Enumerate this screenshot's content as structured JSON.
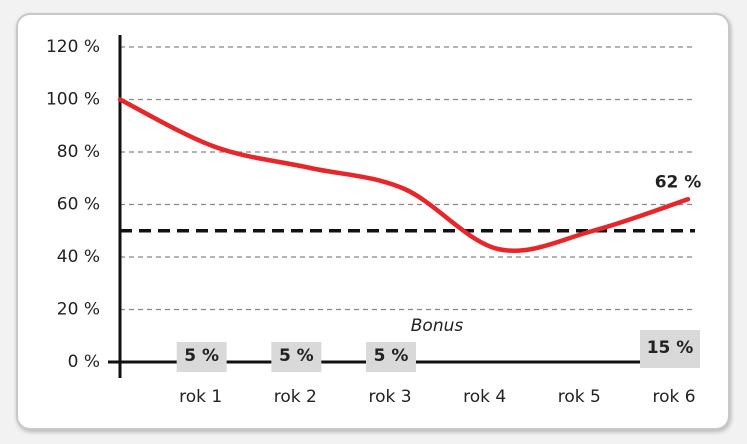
{
  "chart_data": {
    "type": "line",
    "categories": [
      null,
      "rok 1",
      "rok 2",
      "rok 3",
      "rok 4",
      "rok 5",
      "rok 6"
    ],
    "values": [
      100,
      82,
      74,
      66,
      43,
      50,
      62
    ],
    "value_labels": [
      null,
      null,
      null,
      null,
      null,
      null,
      "62 %"
    ],
    "color": "#e8262a",
    "ylim": [
      0,
      120
    ],
    "yticks": [
      {
        "value": 0,
        "label": "0 %"
      },
      {
        "value": 20,
        "label": "20 %"
      },
      {
        "value": 40,
        "label": "40 %"
      },
      {
        "value": 60,
        "label": "60 %"
      },
      {
        "value": 80,
        "label": "80 %"
      },
      {
        "value": 100,
        "label": "100 %"
      },
      {
        "value": 120,
        "label": "120 %"
      }
    ],
    "grid": true,
    "threshold": 50,
    "bonus_title": "Bonus",
    "bonus_values": [
      null,
      5,
      5,
      5,
      null,
      null,
      15
    ],
    "bonus_labels": [
      null,
      "5 %",
      "5 %",
      "5 %",
      null,
      null,
      "15 %"
    ]
  }
}
